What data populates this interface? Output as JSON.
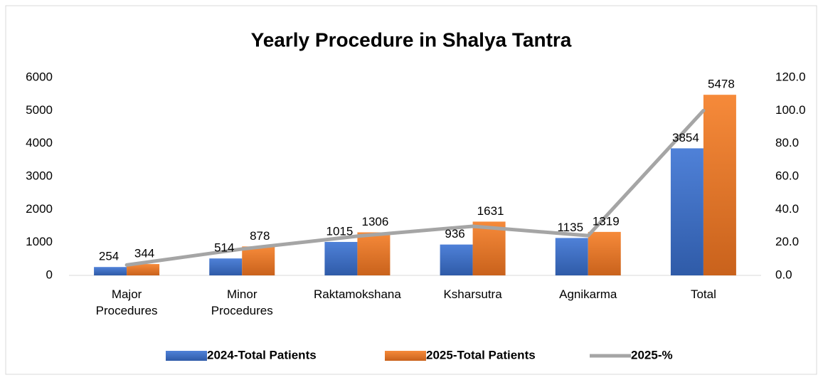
{
  "chart_data": {
    "type": "bar",
    "title": "Yearly Procedure in Shalya Tantra",
    "categories": [
      "Major Procedures",
      "Minor Procedures",
      "Raktamokshana",
      "Ksharsutra",
      "Agnikarma",
      "Total"
    ],
    "series": [
      {
        "name": "2024-Total Patients",
        "color": "#4472c4",
        "type": "bar",
        "values": [
          254,
          514,
          1015,
          936,
          1135,
          3854
        ]
      },
      {
        "name": "2025-Total Patients",
        "color": "#ed7d31",
        "type": "bar",
        "values": [
          344,
          878,
          1306,
          1631,
          1319,
          5478
        ]
      },
      {
        "name": "2025-%",
        "color": "#a5a5a5",
        "type": "line",
        "axis": "y2",
        "values": [
          6.3,
          16.0,
          23.8,
          29.8,
          24.1,
          100.0
        ]
      }
    ],
    "ylim": [
      0,
      6000
    ],
    "yticks": [
      0,
      1000,
      2000,
      3000,
      4000,
      5000,
      6000
    ],
    "y2lim": [
      0,
      120
    ],
    "y2ticks": [
      {
        "value": 0,
        "label": "0.0"
      },
      {
        "value": 20,
        "label": "20.0"
      },
      {
        "value": 40,
        "label": "40.0"
      },
      {
        "value": 60,
        "label": "60.0"
      },
      {
        "value": 80,
        "label": "80.0"
      },
      {
        "value": 100,
        "label": "100.0"
      },
      {
        "value": 120,
        "label": "120.0"
      }
    ],
    "grid": false,
    "legend": "bottom"
  }
}
